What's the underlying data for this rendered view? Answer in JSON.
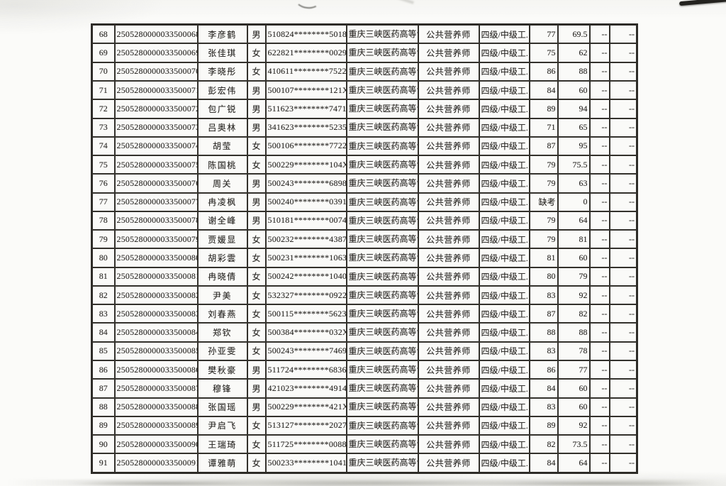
{
  "document": {
    "kind": "scanned-results-table",
    "paper_color": "#fbfbf9",
    "ink_color": "#2b2926",
    "grid_color": "#33312c"
  },
  "table": {
    "shared": {
      "school": "重庆三峡医药高等专科学校",
      "occupation": "公共营养师",
      "level": "四级/中级工.",
      "dash": "--"
    },
    "rows": [
      {
        "no": "68",
        "reg_id": "2505280000033500068",
        "name": "李彦鹤",
        "gender": "男",
        "id_card": "510824********5018",
        "score1": "77",
        "score2": "69.5"
      },
      {
        "no": "69",
        "reg_id": "2505280000033500069",
        "name": "张佳琪",
        "gender": "女",
        "id_card": "622821********0029",
        "score1": "75",
        "score2": "62"
      },
      {
        "no": "70",
        "reg_id": "2505280000033500070",
        "name": "李晓彤",
        "gender": "女",
        "id_card": "410611********7522",
        "score1": "86",
        "score2": "88"
      },
      {
        "no": "71",
        "reg_id": "2505280000033500071",
        "name": "彭宏伟",
        "gender": "男",
        "id_card": "500107********121X",
        "score1": "84",
        "score2": "60"
      },
      {
        "no": "72",
        "reg_id": "2505280000033500072",
        "name": "包广锐",
        "gender": "男",
        "id_card": "511623********7471",
        "score1": "89",
        "score2": "94"
      },
      {
        "no": "73",
        "reg_id": "2505280000033500073",
        "name": "吕奥林",
        "gender": "男",
        "id_card": "341623********5235",
        "score1": "71",
        "score2": "65"
      },
      {
        "no": "74",
        "reg_id": "2505280000033500074",
        "name": "胡莹",
        "gender": "女",
        "id_card": "500106********7722",
        "score1": "87",
        "score2": "95"
      },
      {
        "no": "75",
        "reg_id": "2505280000033500075",
        "name": "陈国桃",
        "gender": "女",
        "id_card": "500229********104X",
        "score1": "79",
        "score2": "75.5"
      },
      {
        "no": "76",
        "reg_id": "2505280000033500076",
        "name": "周关",
        "gender": "男",
        "id_card": "500243********6898",
        "score1": "79",
        "score2": "63"
      },
      {
        "no": "77",
        "reg_id": "2505280000033500077",
        "name": "冉凌枫",
        "gender": "男",
        "id_card": "500240********0391",
        "score1": "缺考",
        "score2": "0"
      },
      {
        "no": "78",
        "reg_id": "2505280000033500078",
        "name": "谢全峰",
        "gender": "男",
        "id_card": "510181********0074",
        "score1": "79",
        "score2": "64"
      },
      {
        "no": "79",
        "reg_id": "2505280000033500079",
        "name": "贾媛显",
        "gender": "女",
        "id_card": "500232********4387",
        "score1": "79",
        "score2": "81"
      },
      {
        "no": "80",
        "reg_id": "2505280000033500080",
        "name": "胡彩雲",
        "gender": "女",
        "id_card": "500231********1063",
        "score1": "81",
        "score2": "60"
      },
      {
        "no": "81",
        "reg_id": "2505280000033500081",
        "name": "冉晓倩",
        "gender": "女",
        "id_card": "500242********1040",
        "score1": "80",
        "score2": "79"
      },
      {
        "no": "82",
        "reg_id": "2505280000033500082",
        "name": "尹美",
        "gender": "女",
        "id_card": "532327********0922",
        "score1": "83",
        "score2": "92"
      },
      {
        "no": "83",
        "reg_id": "2505280000033500083",
        "name": "刘春燕",
        "gender": "女",
        "id_card": "500115********5623",
        "score1": "87",
        "score2": "82"
      },
      {
        "no": "84",
        "reg_id": "2505280000033500084",
        "name": "郑钦",
        "gender": "女",
        "id_card": "500384********032X",
        "score1": "88",
        "score2": "88"
      },
      {
        "no": "85",
        "reg_id": "2505280000033500085",
        "name": "孙亚雯",
        "gender": "女",
        "id_card": "500243********7469",
        "score1": "83",
        "score2": "78"
      },
      {
        "no": "86",
        "reg_id": "2505280000033500086",
        "name": "樊秋豪",
        "gender": "男",
        "id_card": "511724********6836",
        "score1": "86",
        "score2": "77"
      },
      {
        "no": "87",
        "reg_id": "2505280000033500087",
        "name": "穆锋",
        "gender": "男",
        "id_card": "421023********4914",
        "score1": "84",
        "score2": "60"
      },
      {
        "no": "88",
        "reg_id": "2505280000033500088",
        "name": "张国瑶",
        "gender": "男",
        "id_card": "500229********421X",
        "score1": "83",
        "score2": "60"
      },
      {
        "no": "89",
        "reg_id": "2505280000033500089",
        "name": "尹启飞",
        "gender": "女",
        "id_card": "513127********2027",
        "score1": "89",
        "score2": "92"
      },
      {
        "no": "90",
        "reg_id": "2505280000033500090",
        "name": "王瑞琦",
        "gender": "女",
        "id_card": "511725********0088",
        "score1": "82",
        "score2": "73.5"
      },
      {
        "no": "91",
        "reg_id": "2505280000033500091",
        "name": "谭雅萌",
        "gender": "女",
        "id_card": "500233********1041",
        "score1": "84",
        "score2": "64"
      }
    ]
  }
}
